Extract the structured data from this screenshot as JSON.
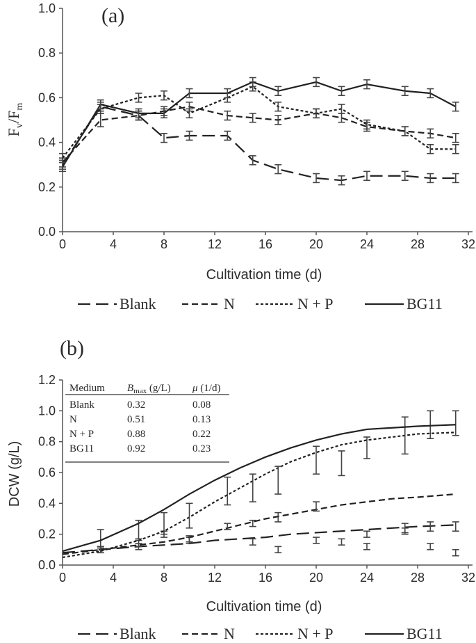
{
  "chart_data": [
    {
      "type": "line",
      "panel_label": "(a)",
      "ylabel": "Fv/Fm",
      "ylabel_main": "F",
      "ylabel_sub1": "v",
      "ylabel_sep": "/F",
      "ylabel_sub2": "m",
      "xlabel": "Cultivation time (d)",
      "xlim": [
        0,
        32
      ],
      "ylim": [
        0,
        1.0
      ],
      "xticks": [
        "0",
        "4",
        "8",
        "12",
        "16",
        "20",
        "24",
        "28",
        "32"
      ],
      "yticks": [
        "0.0",
        "0.2",
        "0.4",
        "0.6",
        "0.8",
        "1.0"
      ],
      "x": [
        0,
        3,
        6,
        8,
        10,
        13,
        15,
        17,
        20,
        22,
        24,
        27,
        29,
        31
      ],
      "series": [
        {
          "name": "Blank",
          "style": "long-dash",
          "values": [
            0.3,
            0.56,
            0.52,
            0.42,
            0.43,
            0.43,
            0.32,
            0.28,
            0.24,
            0.23,
            0.25,
            0.25,
            0.24,
            0.24
          ],
          "errors": [
            0.02,
            0.02,
            0.02,
            0.02,
            0.02,
            0.02,
            0.02,
            0.02,
            0.02,
            0.02,
            0.02,
            0.02,
            0.02,
            0.02
          ]
        },
        {
          "name": "N",
          "style": "dash",
          "values": [
            0.31,
            0.5,
            0.52,
            0.54,
            0.56,
            0.52,
            0.51,
            0.5,
            0.53,
            0.51,
            0.47,
            0.45,
            0.44,
            0.42
          ],
          "errors": [
            0.02,
            0.03,
            0.02,
            0.02,
            0.02,
            0.02,
            0.02,
            0.02,
            0.02,
            0.02,
            0.02,
            0.02,
            0.02,
            0.02
          ]
        },
        {
          "name": "N + P",
          "style": "short-dash",
          "values": [
            0.33,
            0.55,
            0.6,
            0.61,
            0.53,
            0.6,
            0.65,
            0.56,
            0.53,
            0.55,
            0.48,
            0.45,
            0.37,
            0.37
          ],
          "errors": [
            0.02,
            0.02,
            0.02,
            0.02,
            0.02,
            0.02,
            0.02,
            0.02,
            0.02,
            0.02,
            0.02,
            0.02,
            0.02,
            0.02
          ]
        },
        {
          "name": "BG11",
          "style": "solid",
          "values": [
            0.29,
            0.57,
            0.53,
            0.53,
            0.62,
            0.62,
            0.67,
            0.63,
            0.67,
            0.63,
            0.66,
            0.63,
            0.62,
            0.56
          ],
          "errors": [
            0.02,
            0.02,
            0.02,
            0.02,
            0.02,
            0.02,
            0.02,
            0.02,
            0.02,
            0.02,
            0.02,
            0.02,
            0.02,
            0.02
          ]
        }
      ],
      "legend": {
        "placement": "bottom",
        "entries": [
          "Blank",
          "N",
          "N + P",
          "BG11"
        ]
      }
    },
    {
      "type": "line",
      "panel_label": "(b)",
      "ylabel": "DCW (g/L)",
      "xlabel": "Cultivation time (d)",
      "xlim": [
        0,
        32
      ],
      "ylim": [
        0,
        1.2
      ],
      "xticks": [
        "0",
        "4",
        "8",
        "12",
        "16",
        "20",
        "24",
        "28",
        "32"
      ],
      "yticks": [
        "0.0",
        "0.2",
        "0.4",
        "0.6",
        "0.8",
        "1.0",
        "1.2"
      ],
      "curve_x": [
        0,
        3,
        6,
        8,
        10,
        12,
        14,
        16,
        18,
        20,
        22,
        24,
        26,
        28,
        31
      ],
      "series": [
        {
          "name": "Blank",
          "style": "long-dash",
          "curve": [
            0.08,
            0.1,
            0.12,
            0.13,
            0.14,
            0.16,
            0.17,
            0.18,
            0.2,
            0.21,
            0.22,
            0.23,
            0.24,
            0.25,
            0.26
          ],
          "points_x": [
            3,
            6,
            10,
            15,
            17,
            20,
            22,
            24,
            27,
            29,
            31
          ],
          "points_y": [
            0.1,
            0.12,
            0.16,
            0.15,
            0.1,
            0.16,
            0.15,
            0.12,
            0.22,
            0.12,
            0.08
          ],
          "errors": [
            0.02,
            0.02,
            0.02,
            0.02,
            0.02,
            0.02,
            0.02,
            0.02,
            0.02,
            0.02,
            0.02
          ]
        },
        {
          "name": "N",
          "style": "dash",
          "curve": [
            0.07,
            0.1,
            0.13,
            0.15,
            0.18,
            0.22,
            0.26,
            0.3,
            0.33,
            0.36,
            0.39,
            0.41,
            0.43,
            0.44,
            0.46
          ],
          "points_x": [
            3,
            6,
            8,
            10,
            13,
            15,
            17,
            20,
            24,
            27,
            29,
            31
          ],
          "points_y": [
            0.1,
            0.14,
            0.2,
            0.17,
            0.25,
            0.27,
            0.31,
            0.38,
            0.2,
            0.24,
            0.25,
            0.25
          ],
          "errors": [
            0.02,
            0.02,
            0.02,
            0.02,
            0.02,
            0.02,
            0.03,
            0.03,
            0.02,
            0.03,
            0.03,
            0.03
          ]
        },
        {
          "name": "N + P",
          "style": "short-dash",
          "curve": [
            0.05,
            0.09,
            0.16,
            0.22,
            0.31,
            0.41,
            0.5,
            0.59,
            0.67,
            0.73,
            0.78,
            0.81,
            0.83,
            0.85,
            0.86
          ],
          "points_x": [
            3,
            6,
            8,
            10,
            13,
            15,
            17,
            20,
            22,
            24,
            27,
            29,
            31
          ],
          "points_y": [
            0.17,
            0.23,
            0.27,
            0.32,
            0.48,
            0.5,
            0.55,
            0.68,
            0.66,
            0.76,
            0.84,
            0.91,
            0.92
          ],
          "errors": [
            0.06,
            0.06,
            0.07,
            0.08,
            0.09,
            0.09,
            0.09,
            0.09,
            0.08,
            0.07,
            0.12,
            0.09,
            0.08
          ]
        },
        {
          "name": "BG11",
          "style": "solid",
          "curve": [
            0.09,
            0.16,
            0.27,
            0.36,
            0.46,
            0.55,
            0.63,
            0.7,
            0.76,
            0.81,
            0.85,
            0.88,
            0.89,
            0.9,
            0.91
          ],
          "points_x": [],
          "points_y": [],
          "errors": []
        }
      ],
      "legend": {
        "placement": "bottom",
        "entries": [
          "Blank",
          "N",
          "N + P",
          "BG11"
        ]
      },
      "table": {
        "headers": [
          "Medium",
          "Bmax (g/L)",
          "μ (1/d)"
        ],
        "header_bmax_base": "B",
        "header_bmax_sub": "max",
        "header_bmax_unit": " (g/L)",
        "header_mu_symbol": "μ",
        "header_mu_unit": " (1/d)",
        "rows": [
          [
            "Blank",
            "0.32",
            "0.08"
          ],
          [
            "N",
            "0.51",
            "0.13"
          ],
          [
            "N + P",
            "0.88",
            "0.22"
          ],
          [
            "BG11",
            "0.92",
            "0.23"
          ]
        ]
      }
    }
  ]
}
